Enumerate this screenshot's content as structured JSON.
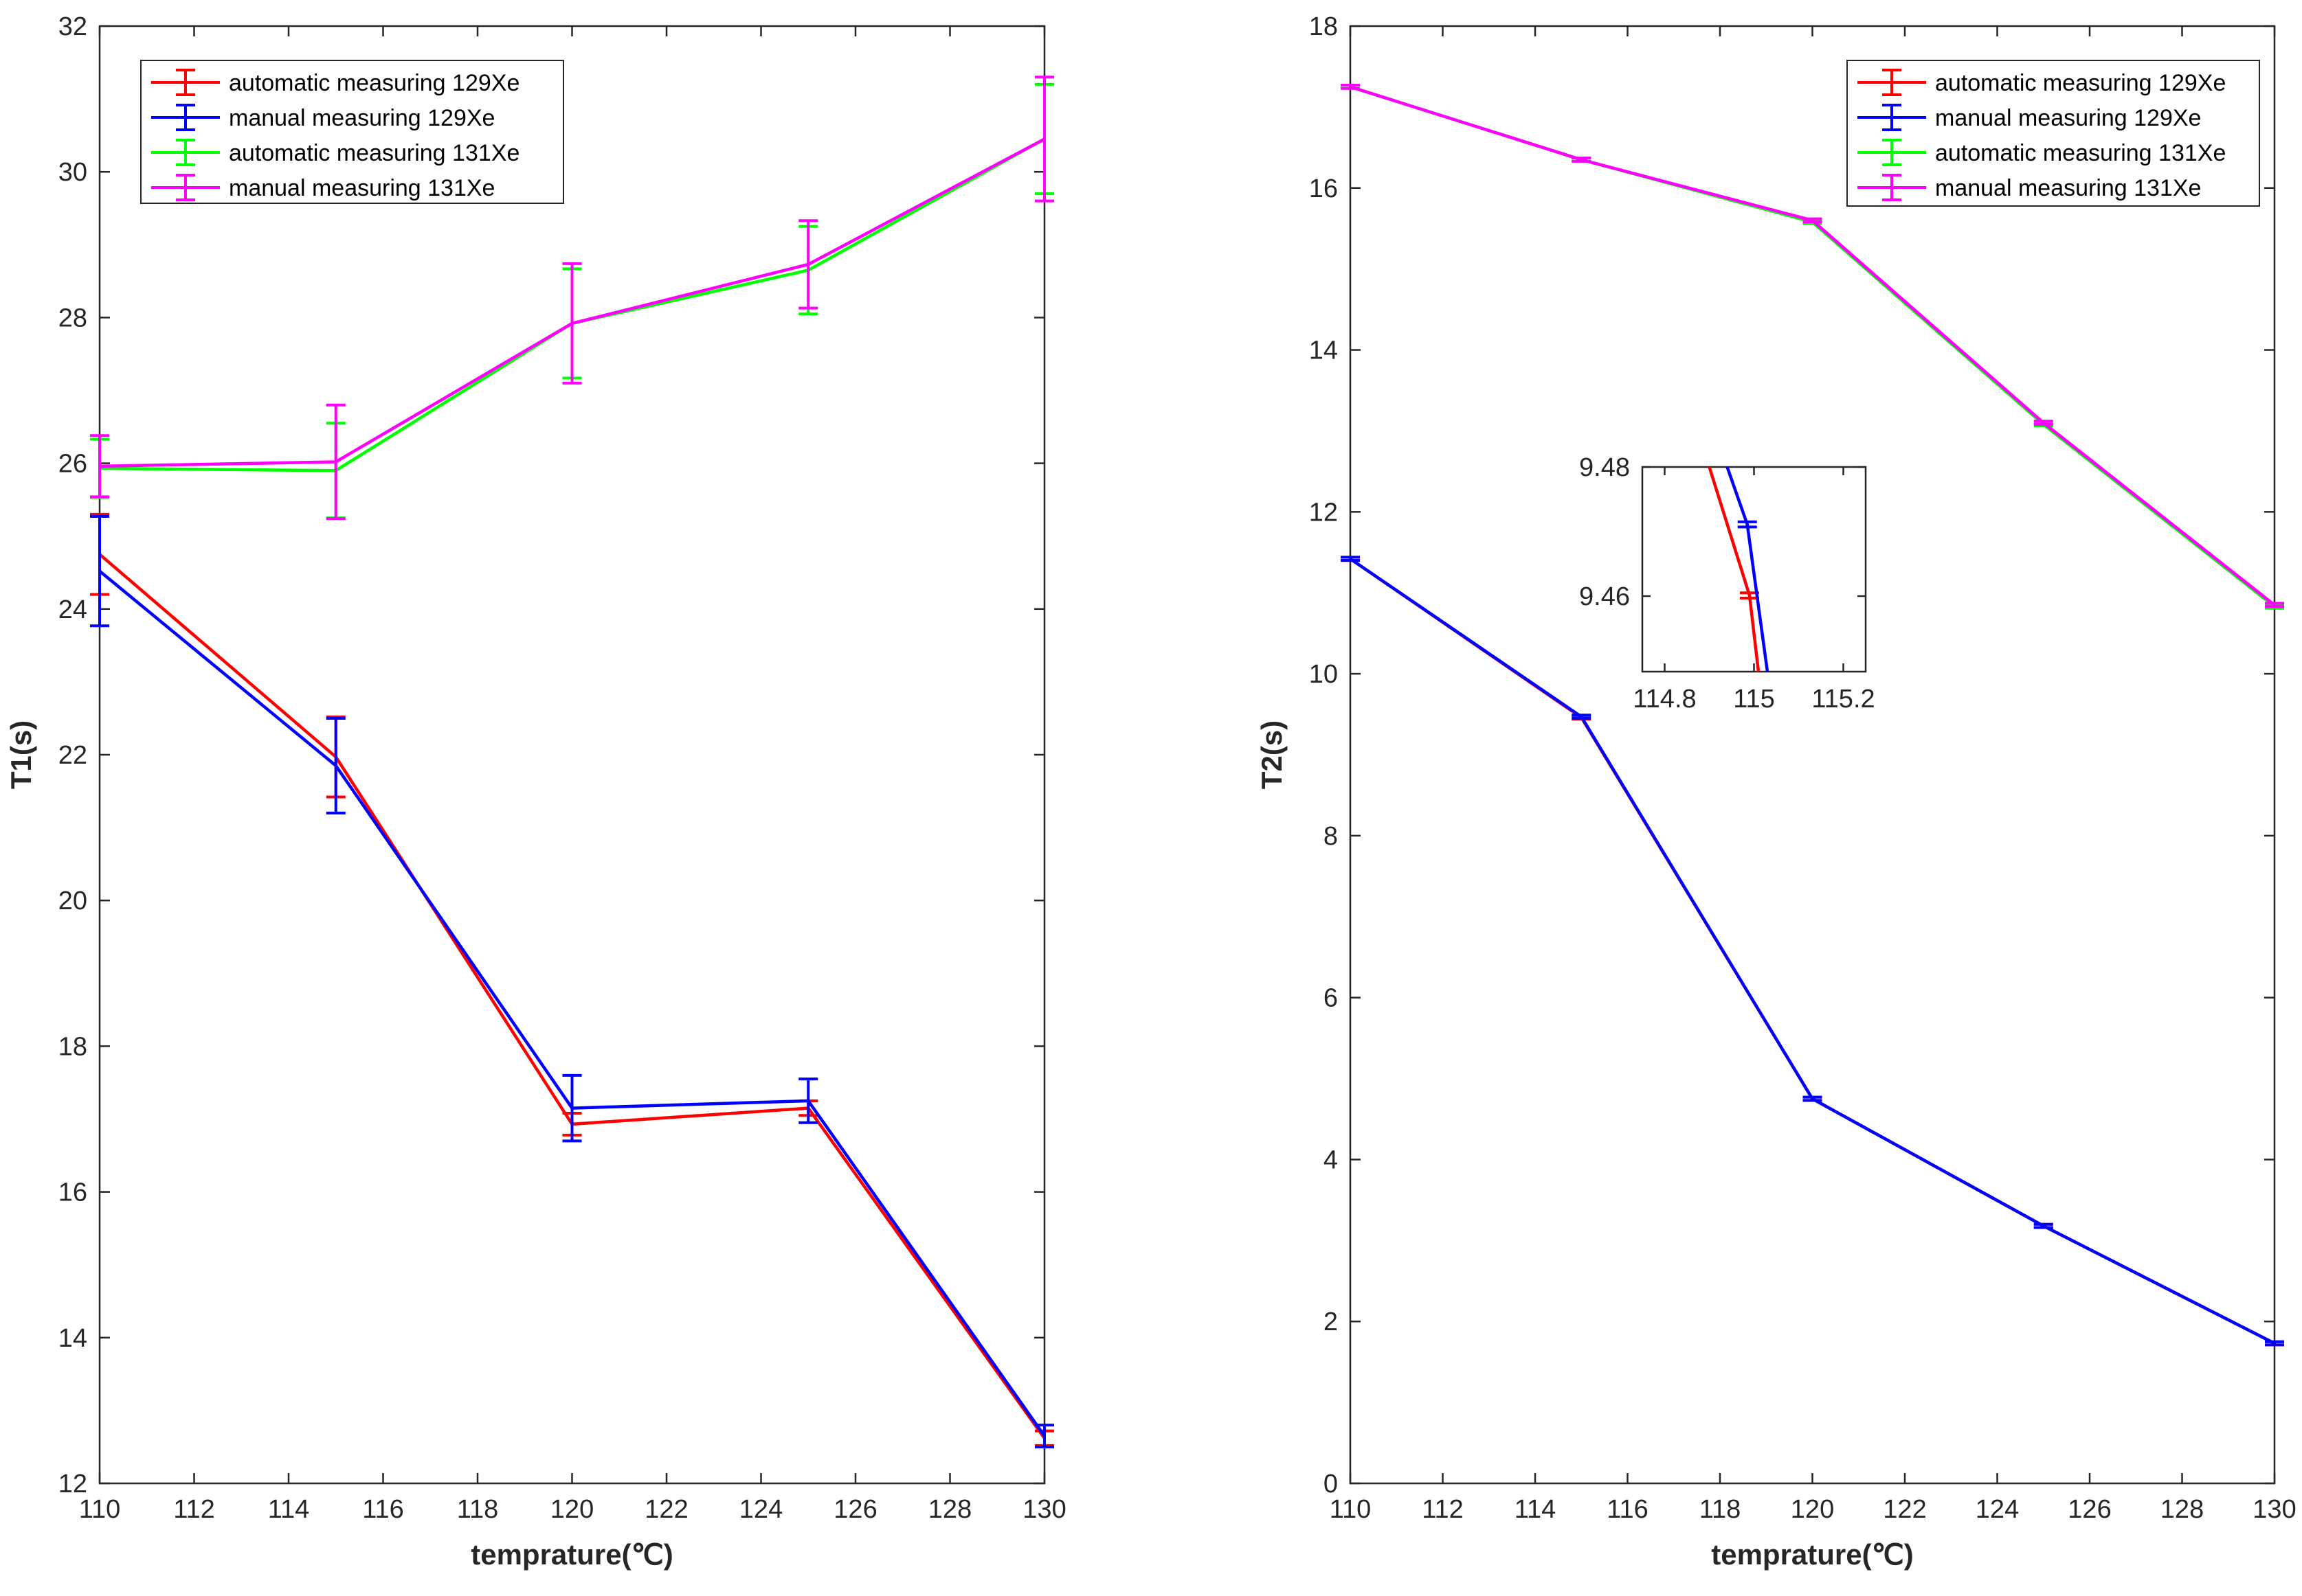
{
  "chart_data": [
    {
      "type": "line",
      "title": "",
      "xlabel": "temprature(℃)",
      "ylabel": "T1(s)",
      "xlim": [
        110,
        130
      ],
      "ylim": [
        12,
        32
      ],
      "xticks": [
        110,
        112,
        114,
        116,
        118,
        120,
        122,
        124,
        126,
        128,
        130
      ],
      "yticks": [
        12,
        14,
        16,
        18,
        20,
        22,
        24,
        26,
        28,
        30,
        32
      ],
      "legend_position": "top-left",
      "x": [
        110,
        115,
        120,
        125,
        130
      ],
      "series": [
        {
          "name": "automatic measuring 129Xe",
          "color": "#ff0000",
          "values": [
            24.75,
            21.97,
            16.93,
            17.15,
            12.62
          ],
          "err": [
            0.55,
            0.55,
            0.15,
            0.1,
            0.1
          ]
        },
        {
          "name": "manual measuring 129Xe",
          "color": "#0000ff",
          "values": [
            24.52,
            21.85,
            17.15,
            17.25,
            12.65
          ],
          "err": [
            0.75,
            0.65,
            0.45,
            0.3,
            0.15
          ]
        },
        {
          "name": "automatic measuring 131Xe",
          "color": "#00ff00",
          "values": [
            25.93,
            25.9,
            27.92,
            28.65,
            30.45
          ],
          "err": [
            0.4,
            0.65,
            0.75,
            0.6,
            0.75
          ]
        },
        {
          "name": "manual measuring 131Xe",
          "color": "#ff00ff",
          "values": [
            25.96,
            26.02,
            27.92,
            28.73,
            30.45
          ],
          "err": [
            0.42,
            0.78,
            0.82,
            0.6,
            0.85
          ]
        }
      ]
    },
    {
      "type": "line",
      "title": "",
      "xlabel": "temprature(℃)",
      "ylabel": "T2(s)",
      "xlim": [
        110,
        130
      ],
      "ylim": [
        0,
        18
      ],
      "xticks": [
        110,
        112,
        114,
        116,
        118,
        120,
        122,
        124,
        126,
        128,
        130
      ],
      "yticks": [
        0,
        2,
        4,
        6,
        8,
        10,
        12,
        14,
        16,
        18
      ],
      "legend_position": "top-right",
      "x": [
        110,
        115,
        120,
        125,
        130
      ],
      "series": [
        {
          "name": "automatic measuring 129Xe",
          "color": "#ff0000",
          "values": [
            11.42,
            9.46,
            4.75,
            3.18,
            1.73
          ],
          "err": [
            0.02,
            0.02,
            0.02,
            0.02,
            0.02
          ]
        },
        {
          "name": "manual measuring 129Xe",
          "color": "#0000ff",
          "values": [
            11.42,
            9.47,
            4.75,
            3.18,
            1.73
          ],
          "err": [
            0.02,
            0.02,
            0.02,
            0.02,
            0.02
          ]
        },
        {
          "name": "automatic measuring 131Xe",
          "color": "#00ff00",
          "values": [
            17.25,
            16.35,
            15.58,
            13.08,
            10.83
          ],
          "err": [
            0.02,
            0.02,
            0.02,
            0.02,
            0.02
          ]
        },
        {
          "name": "manual measuring 131Xe",
          "color": "#ff00ff",
          "values": [
            17.25,
            16.35,
            15.6,
            13.1,
            10.85
          ],
          "err": [
            0.02,
            0.02,
            0.02,
            0.02,
            0.02
          ]
        }
      ],
      "inset": {
        "xlim": [
          114.75,
          115.25
        ],
        "ylim": [
          9.4483,
          9.48
        ],
        "xticks": [
          114.8,
          115,
          115.2
        ],
        "yticks": [
          9.46,
          9.48
        ],
        "series": [
          {
            "name": "automatic measuring 129Xe",
            "color": "#ff0000",
            "x": [
              114.9,
              114.99,
              115.01
            ],
            "values": [
              9.48,
              9.4601,
              9.4483
            ],
            "err": [
              0,
              0.0004,
              0
            ]
          },
          {
            "name": "manual measuring 129Xe",
            "color": "#0000ff",
            "x": [
              114.94,
              114.985,
              115.03
            ],
            "values": [
              9.48,
              9.4711,
              9.4483
            ],
            "err": [
              0,
              0.0004,
              0
            ]
          }
        ]
      }
    }
  ]
}
